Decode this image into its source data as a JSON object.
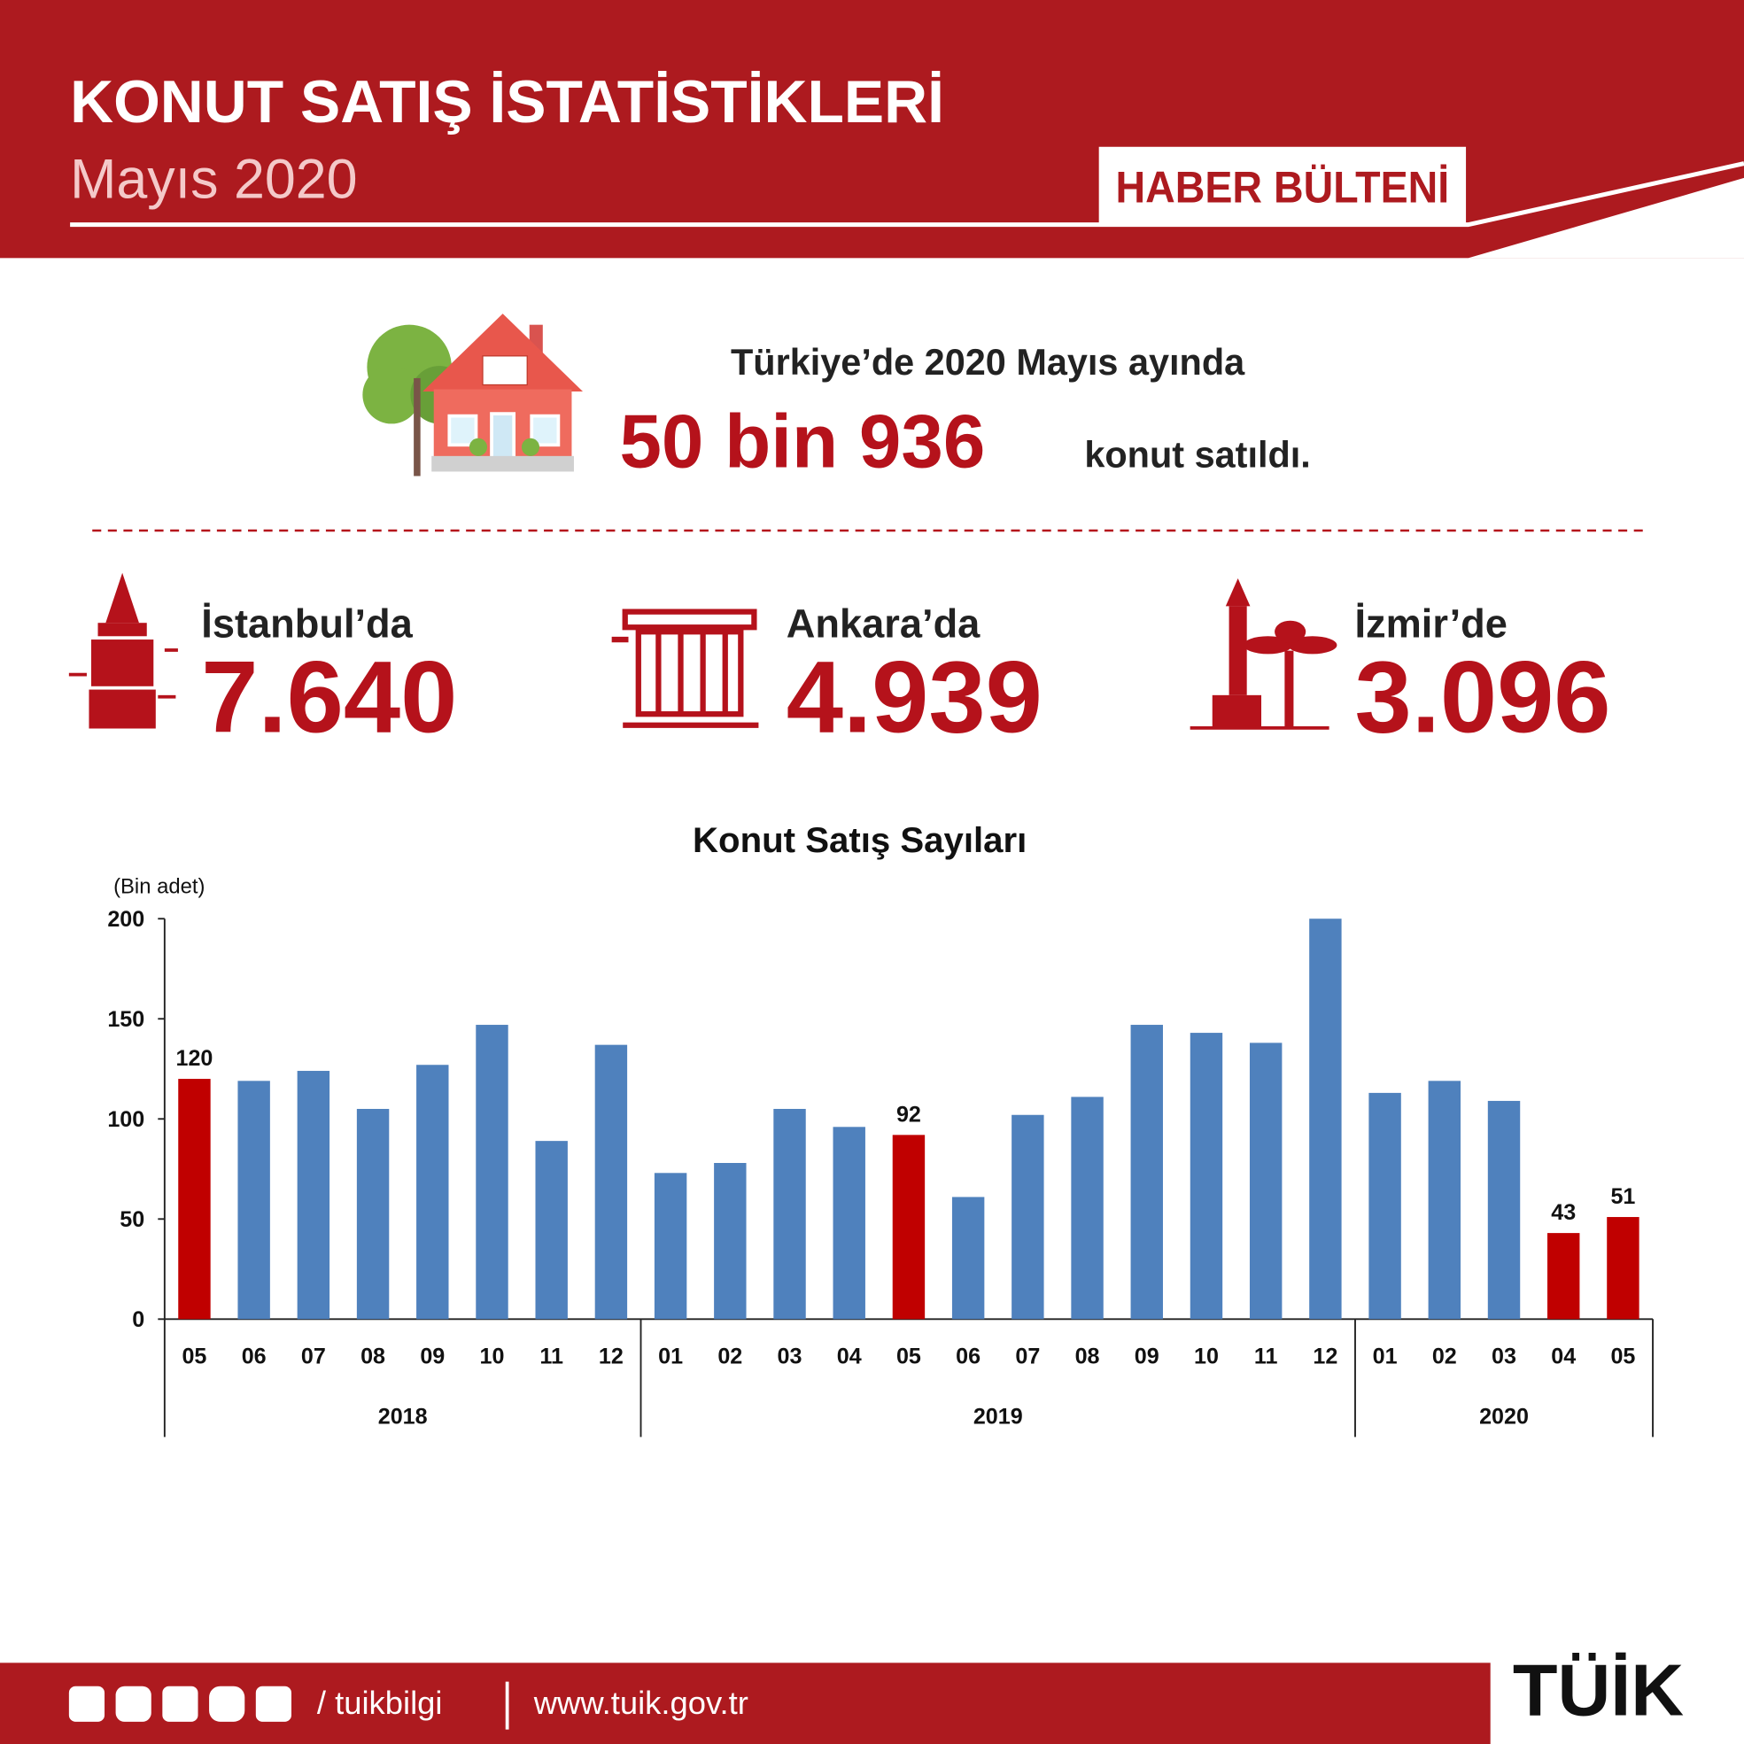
{
  "header": {
    "title": "KONUT SATIŞ İSTATİSTİKLERİ",
    "subtitle": "Mayıs 2020",
    "badge": "HABER BÜLTENİ"
  },
  "summary": {
    "lead": "Türkiye’de 2020 Mayıs ayında",
    "highlight": "50 bin 936",
    "tail": "konut satıldı."
  },
  "cities": [
    {
      "label": "İstanbul’da",
      "value": "7.640"
    },
    {
      "label": "Ankara’da",
      "value": "4.939"
    },
    {
      "label": "İzmir’de",
      "value": "3.096"
    }
  ],
  "chart_data": {
    "type": "bar",
    "title": "Konut Satış Sayıları",
    "y_label": "(Bin adet)",
    "categories": [
      "05",
      "06",
      "07",
      "08",
      "09",
      "10",
      "11",
      "12",
      "01",
      "02",
      "03",
      "04",
      "05",
      "06",
      "07",
      "08",
      "09",
      "10",
      "11",
      "12",
      "01",
      "02",
      "03",
      "04",
      "05"
    ],
    "category_groups": [
      "2018",
      "2018",
      "2018",
      "2018",
      "2018",
      "2018",
      "2018",
      "2018",
      "2019",
      "2019",
      "2019",
      "2019",
      "2019",
      "2019",
      "2019",
      "2019",
      "2019",
      "2019",
      "2019",
      "2019",
      "2020",
      "2020",
      "2020",
      "2020",
      "2020"
    ],
    "values": [
      120,
      119,
      124,
      105,
      127,
      147,
      89,
      137,
      73,
      78,
      105,
      96,
      92,
      61,
      102,
      111,
      147,
      143,
      138,
      200,
      113,
      119,
      109,
      43,
      51
    ],
    "value_labels": [
      "120",
      null,
      null,
      null,
      null,
      null,
      null,
      null,
      null,
      null,
      null,
      null,
      "92",
      null,
      null,
      null,
      null,
      null,
      null,
      null,
      null,
      null,
      null,
      "43",
      "51"
    ],
    "colors": [
      "#c00000",
      "#4f81bd",
      "#4f81bd",
      "#4f81bd",
      "#4f81bd",
      "#4f81bd",
      "#4f81bd",
      "#4f81bd",
      "#4f81bd",
      "#4f81bd",
      "#4f81bd",
      "#4f81bd",
      "#c00000",
      "#4f81bd",
      "#4f81bd",
      "#4f81bd",
      "#4f81bd",
      "#4f81bd",
      "#4f81bd",
      "#4f81bd",
      "#4f81bd",
      "#4f81bd",
      "#4f81bd",
      "#c00000",
      "#c00000"
    ],
    "ylim": [
      0,
      200
    ],
    "yticks": [
      0,
      50,
      100,
      150,
      200
    ],
    "grid": false
  },
  "footer": {
    "handle": "/ tuikbilgi",
    "url": "www.tuik.gov.tr",
    "logo": "TÜİK"
  }
}
